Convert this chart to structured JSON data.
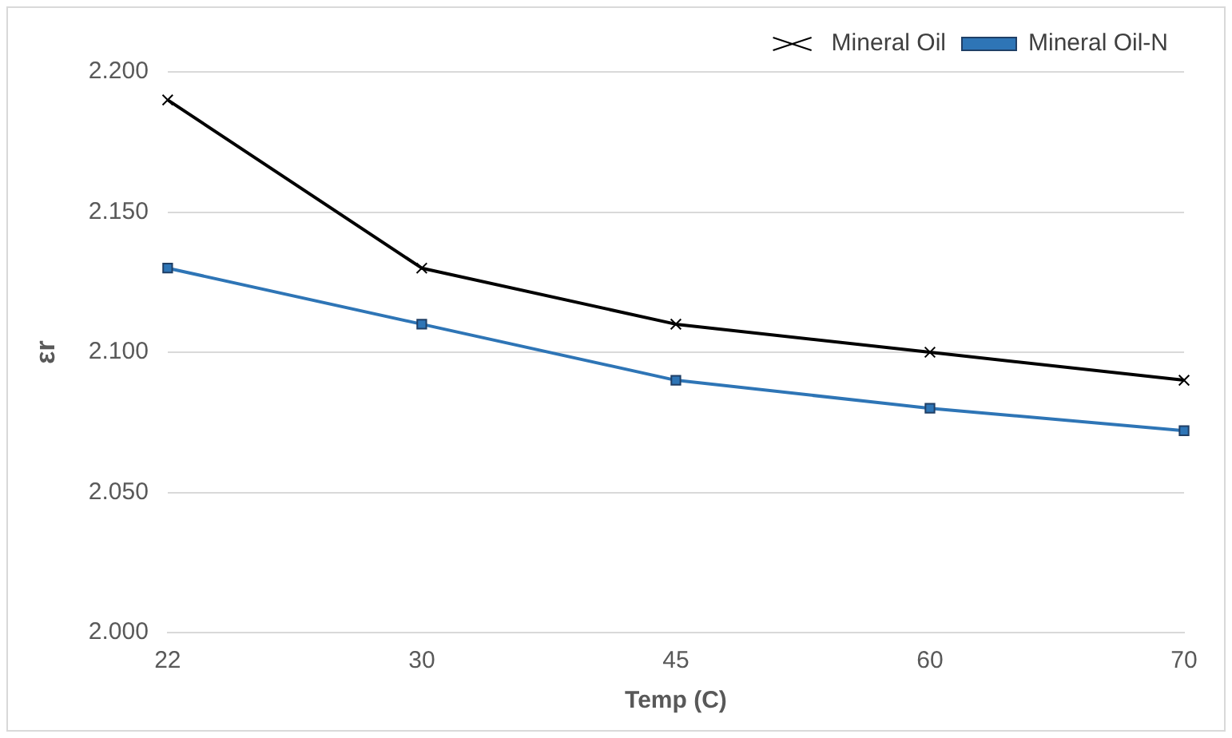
{
  "chart_data": {
    "type": "line",
    "xlabel": "Temp (C)",
    "ylabel": "εr",
    "categories": [
      "22",
      "30",
      "45",
      "60",
      "70"
    ],
    "series": [
      {
        "name": "Mineral Oil",
        "color": "#000000",
        "marker": "cross",
        "values": [
          2.19,
          2.13,
          2.11,
          2.1,
          2.09
        ]
      },
      {
        "name": "Mineral Oil-N",
        "color": "#2e75b6",
        "marker": "square",
        "values": [
          2.13,
          2.11,
          2.09,
          2.08,
          2.072
        ]
      }
    ],
    "ylim": [
      2.0,
      2.2
    ],
    "yticks": [
      {
        "value": 2.0,
        "label": "2.000"
      },
      {
        "value": 2.05,
        "label": "2.050"
      },
      {
        "value": 2.1,
        "label": "2.100"
      },
      {
        "value": 2.15,
        "label": "2.150"
      },
      {
        "value": 2.2,
        "label": "2.200"
      }
    ],
    "grid": "y",
    "legend": "top right"
  }
}
